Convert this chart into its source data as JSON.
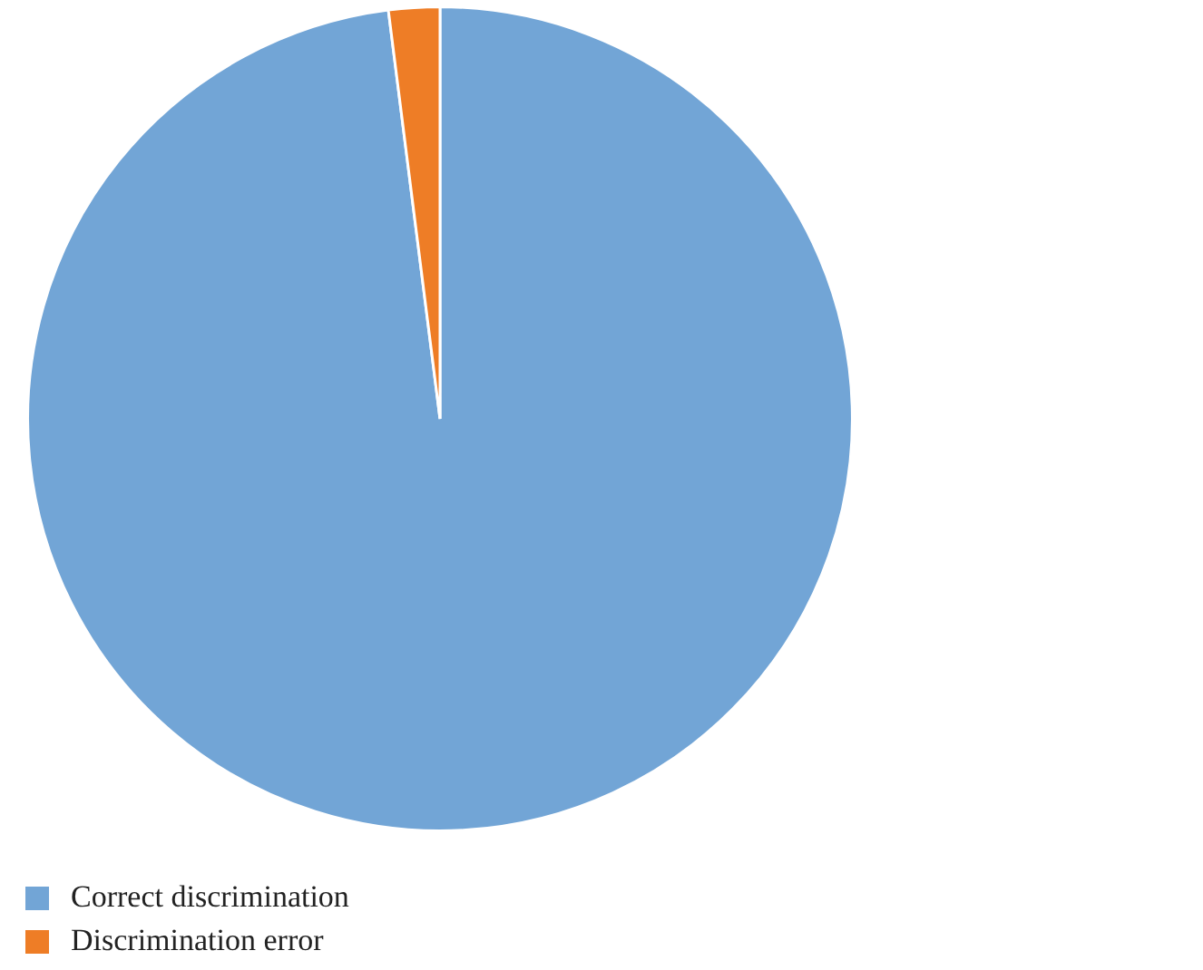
{
  "chart_data": {
    "type": "pie",
    "categories": [
      "Correct discrimination",
      "Discrimination error"
    ],
    "values": [
      98,
      2
    ],
    "colors": [
      "#72a5d6",
      "#ee7d26"
    ],
    "legend": "bottom left"
  }
}
